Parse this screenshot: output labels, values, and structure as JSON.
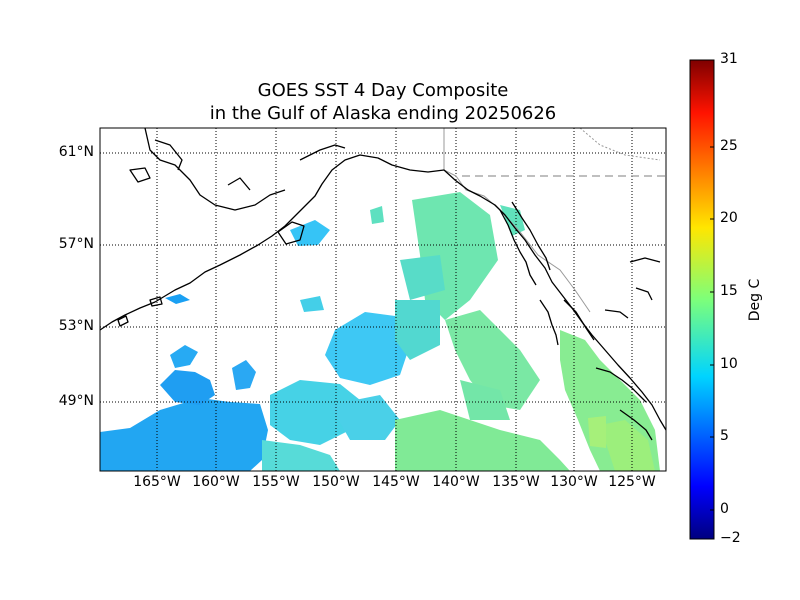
{
  "title": {
    "line1": "GOES SST 4 Day Composite",
    "line2": "in the Gulf of Alaska ending 20250626"
  },
  "map": {
    "lat_labels": [
      "61°N",
      "57°N",
      "53°N",
      "49°N"
    ],
    "lon_labels": [
      "165°W",
      "160°W",
      "155°W",
      "150°W",
      "145°W",
      "140°W",
      "135°W",
      "130°W",
      "125°W"
    ],
    "grid": true
  },
  "colorbar": {
    "label": "Deg C",
    "ticks": [
      "31",
      "25",
      "20",
      "15",
      "10",
      "5",
      "0",
      "−2"
    ],
    "min": -2,
    "max": 31,
    "colormap": "jet"
  },
  "colors": {
    "coast": "#000000",
    "border": "#999999",
    "grid": "#000000"
  }
}
